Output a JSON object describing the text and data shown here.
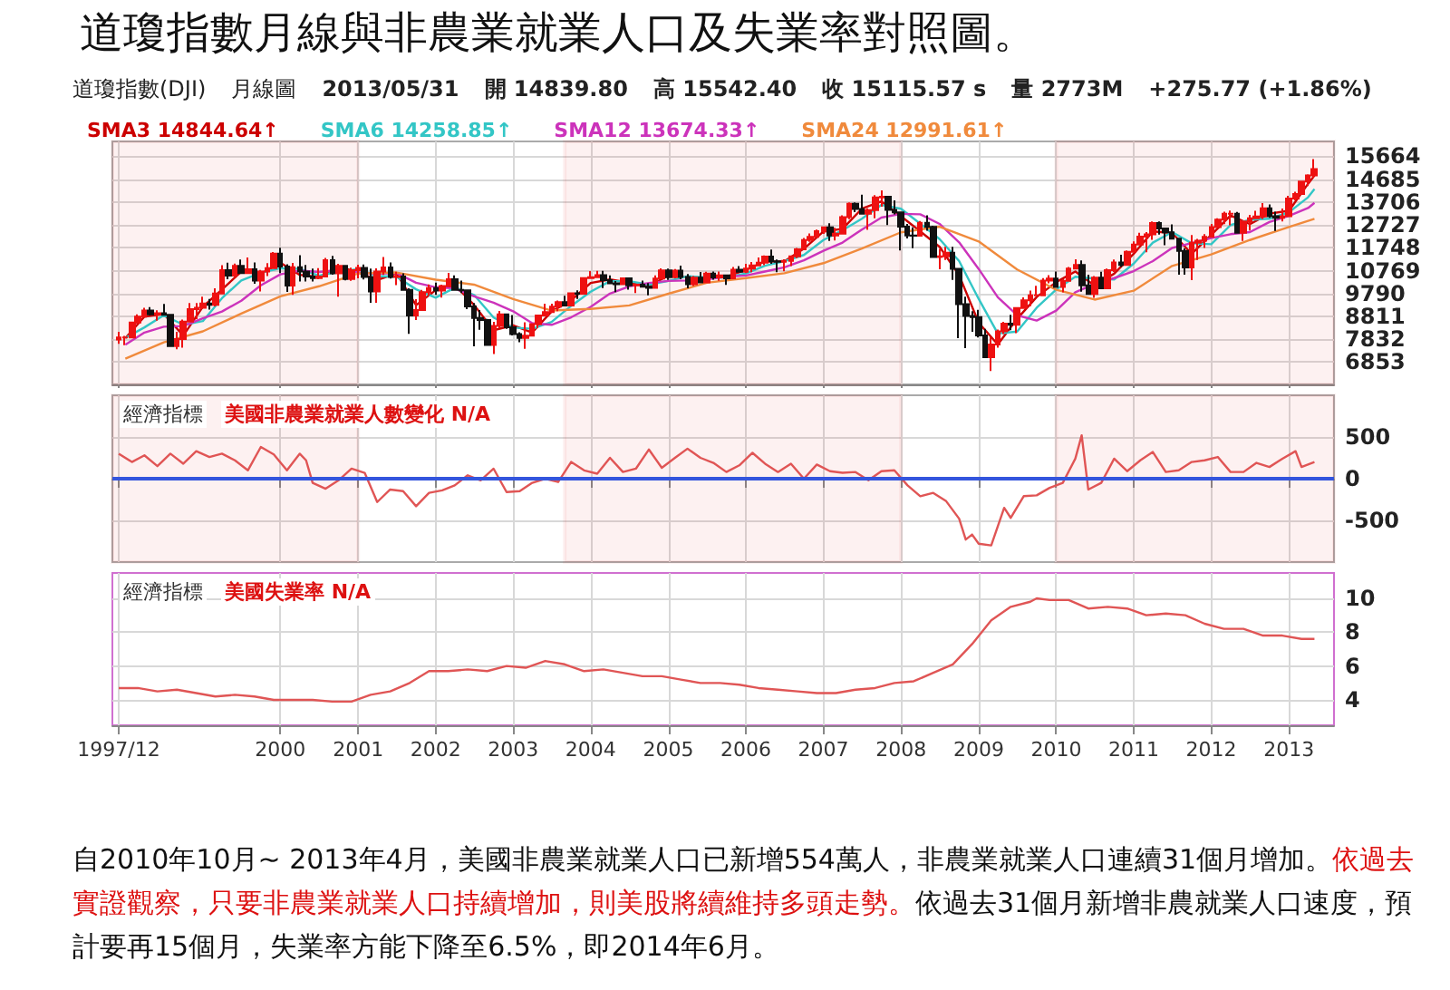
{
  "chart_data": [
    {
      "type": "candlestick",
      "title": "道瓊指數月線與非農業就業人口及失業率對照圖。",
      "annotations": [
        "道瓊指數(DJI)",
        "月線圖",
        "2013/05/31",
        "開 14839.80",
        "高 15542.40",
        "收 15115.57 s",
        "量 2773M",
        "+275.77 (+1.86%)"
      ],
      "x": [
        "1997-12",
        "1998-01",
        "1998-02",
        "1998-03",
        "1998-04",
        "1998-05",
        "1998-06",
        "1998-07",
        "1998-08",
        "1998-09",
        "1998-10",
        "1998-11",
        "1998-12",
        "1999-01",
        "1999-02",
        "1999-03",
        "1999-04",
        "1999-05",
        "1999-06",
        "1999-07",
        "1999-08",
        "1999-09",
        "1999-10",
        "1999-11",
        "1999-12",
        "2000-01",
        "2000-02",
        "2000-03",
        "2000-04",
        "2000-05",
        "2000-06",
        "2000-07",
        "2000-08",
        "2000-09",
        "2000-10",
        "2000-11",
        "2000-12",
        "2001-01",
        "2001-02",
        "2001-03",
        "2001-04",
        "2001-05",
        "2001-06",
        "2001-07",
        "2001-08",
        "2001-09",
        "2001-10",
        "2001-11",
        "2001-12",
        "2002-01",
        "2002-02",
        "2002-03",
        "2002-04",
        "2002-05",
        "2002-06",
        "2002-07",
        "2002-08",
        "2002-09",
        "2002-10",
        "2002-11",
        "2002-12",
        "2003-01",
        "2003-02",
        "2003-03",
        "2003-04",
        "2003-05",
        "2003-06",
        "2003-07",
        "2003-08",
        "2003-09",
        "2003-10",
        "2003-11",
        "2003-12",
        "2004-01",
        "2004-02",
        "2004-03",
        "2004-04",
        "2004-05",
        "2004-06",
        "2004-07",
        "2004-08",
        "2004-09",
        "2004-10",
        "2004-11",
        "2004-12",
        "2005-01",
        "2005-02",
        "2005-03",
        "2005-04",
        "2005-05",
        "2005-06",
        "2005-07",
        "2005-08",
        "2005-09",
        "2005-10",
        "2005-11",
        "2005-12",
        "2006-01",
        "2006-02",
        "2006-03",
        "2006-04",
        "2006-05",
        "2006-06",
        "2006-07",
        "2006-08",
        "2006-09",
        "2006-10",
        "2006-11",
        "2006-12",
        "2007-01",
        "2007-02",
        "2007-03",
        "2007-04",
        "2007-05",
        "2007-06",
        "2007-07",
        "2007-08",
        "2007-09",
        "2007-10",
        "2007-11",
        "2007-12",
        "2008-01",
        "2008-02",
        "2008-03",
        "2008-04",
        "2008-05",
        "2008-06",
        "2008-07",
        "2008-08",
        "2008-09",
        "2008-10",
        "2008-11",
        "2008-12",
        "2009-01",
        "2009-02",
        "2009-03",
        "2009-04",
        "2009-05",
        "2009-06",
        "2009-07",
        "2009-08",
        "2009-09",
        "2009-10",
        "2009-11",
        "2009-12",
        "2010-01",
        "2010-02",
        "2010-03",
        "2010-04",
        "2010-05",
        "2010-06",
        "2010-07",
        "2010-08",
        "2010-09",
        "2010-10",
        "2010-11",
        "2010-12",
        "2011-01",
        "2011-02",
        "2011-03",
        "2011-04",
        "2011-05",
        "2011-06",
        "2011-07",
        "2011-08",
        "2011-09",
        "2011-10",
        "2011-11",
        "2011-12",
        "2012-01",
        "2012-02",
        "2012-03",
        "2012-04",
        "2012-05",
        "2012-06",
        "2012-07",
        "2012-08",
        "2012-09",
        "2012-10",
        "2012-11",
        "2012-12",
        "2013-01",
        "2013-02",
        "2013-03",
        "2013-04",
        "2013-05"
      ],
      "ohlc": [
        [
          7820,
          8150,
          7640,
          7910
        ],
        [
          7910,
          7980,
          7580,
          7910
        ],
        [
          7910,
          8580,
          7900,
          8550
        ],
        [
          8550,
          8900,
          8500,
          8800
        ],
        [
          8800,
          9180,
          8770,
          9060
        ],
        [
          9060,
          9210,
          8850,
          8900
        ],
        [
          8900,
          9070,
          8630,
          8950
        ],
        [
          8950,
          9340,
          8850,
          8880
        ],
        [
          8880,
          8920,
          7540,
          7540
        ],
        [
          7540,
          8150,
          7400,
          7840
        ],
        [
          7840,
          8670,
          7470,
          8590
        ],
        [
          8590,
          9380,
          8590,
          9120
        ],
        [
          9120,
          9380,
          8690,
          9180
        ],
        [
          9180,
          9650,
          9120,
          9360
        ],
        [
          9360,
          9560,
          9100,
          9310
        ],
        [
          9310,
          10010,
          9240,
          9790
        ],
        [
          9790,
          11000,
          9770,
          10790
        ],
        [
          10790,
          11110,
          10400,
          10560
        ],
        [
          10560,
          11070,
          10460,
          10970
        ],
        [
          10970,
          11250,
          10650,
          10660
        ],
        [
          10660,
          11330,
          10620,
          10830
        ],
        [
          10830,
          11120,
          10210,
          10340
        ],
        [
          10340,
          10800,
          9880,
          10730
        ],
        [
          10730,
          11090,
          10540,
          10880
        ],
        [
          10880,
          11570,
          10880,
          11500
        ],
        [
          11500,
          11750,
          10660,
          10940
        ],
        [
          10940,
          11040,
          9860,
          10130
        ],
        [
          10130,
          11100,
          9730,
          10920
        ],
        [
          10920,
          11430,
          10300,
          10730
        ],
        [
          10730,
          11010,
          10300,
          10520
        ],
        [
          10520,
          10860,
          10300,
          10450
        ],
        [
          10450,
          10880,
          10400,
          10520
        ],
        [
          10520,
          11310,
          10520,
          11220
        ],
        [
          11220,
          11400,
          10600,
          10650
        ],
        [
          10650,
          11060,
          9650,
          10970
        ],
        [
          10970,
          11000,
          10350,
          10410
        ],
        [
          10410,
          10900,
          10330,
          10790
        ],
        [
          10790,
          11020,
          10440,
          10890
        ],
        [
          10890,
          11030,
          10390,
          10500
        ],
        [
          10500,
          10860,
          9390,
          9880
        ],
        [
          9880,
          10870,
          9390,
          10730
        ],
        [
          10730,
          11350,
          10590,
          10910
        ],
        [
          10910,
          11120,
          10430,
          10500
        ],
        [
          10500,
          10720,
          10150,
          10520
        ],
        [
          10520,
          10650,
          9920,
          9950
        ],
        [
          9950,
          10010,
          8060,
          8850
        ],
        [
          8850,
          9550,
          8660,
          9080
        ],
        [
          9080,
          9950,
          9060,
          9850
        ],
        [
          9850,
          10180,
          9700,
          10020
        ],
        [
          10020,
          10260,
          9730,
          9920
        ],
        [
          9920,
          10170,
          9620,
          10110
        ],
        [
          10110,
          10670,
          10100,
          10400
        ],
        [
          10400,
          10570,
          9920,
          9950
        ],
        [
          9950,
          10340,
          9810,
          9930
        ],
        [
          9930,
          9940,
          9120,
          9240
        ],
        [
          9240,
          9380,
          7530,
          8740
        ],
        [
          8740,
          9080,
          8240,
          8660
        ],
        [
          8660,
          8700,
          7590,
          7590
        ],
        [
          7590,
          8580,
          7200,
          8400
        ],
        [
          8400,
          9040,
          8310,
          8900
        ],
        [
          8900,
          8910,
          8280,
          8340
        ],
        [
          8340,
          8870,
          8000,
          8050
        ],
        [
          8050,
          8130,
          7700,
          7890
        ],
        [
          7890,
          8560,
          7420,
          7990
        ],
        [
          7990,
          8510,
          7990,
          8480
        ],
        [
          8480,
          8870,
          8320,
          8850
        ],
        [
          8850,
          9350,
          8850,
          8990
        ],
        [
          8990,
          9350,
          8960,
          9230
        ],
        [
          9230,
          9490,
          9030,
          9420
        ],
        [
          9420,
          9690,
          9270,
          9280
        ],
        [
          9280,
          9840,
          9280,
          9800
        ],
        [
          9800,
          9930,
          9560,
          9780
        ],
        [
          9780,
          10460,
          9780,
          10450
        ],
        [
          10450,
          10750,
          10420,
          10490
        ],
        [
          10490,
          10760,
          10470,
          10580
        ],
        [
          10580,
          10760,
          10020,
          10360
        ],
        [
          10360,
          10570,
          10220,
          10230
        ],
        [
          10230,
          10320,
          9850,
          10190
        ],
        [
          10190,
          10480,
          10150,
          10440
        ],
        [
          10440,
          10440,
          9960,
          10140
        ],
        [
          10140,
          10210,
          9810,
          10170
        ],
        [
          10170,
          10340,
          10050,
          10080
        ],
        [
          10080,
          10240,
          9710,
          10030
        ],
        [
          10030,
          10570,
          10030,
          10430
        ],
        [
          10430,
          10870,
          10430,
          10780
        ],
        [
          10780,
          10860,
          10370,
          10490
        ],
        [
          10490,
          10840,
          10440,
          10770
        ],
        [
          10770,
          10980,
          10400,
          10500
        ],
        [
          10500,
          10620,
          10010,
          10190
        ],
        [
          10190,
          10540,
          10110,
          10470
        ],
        [
          10470,
          10710,
          10250,
          10270
        ],
        [
          10270,
          10720,
          10250,
          10640
        ],
        [
          10640,
          10730,
          10380,
          10480
        ],
        [
          10480,
          10730,
          10330,
          10570
        ],
        [
          10570,
          10600,
          10160,
          10440
        ],
        [
          10440,
          10930,
          10400,
          10810
        ],
        [
          10810,
          10960,
          10710,
          10720
        ],
        [
          10720,
          11060,
          10660,
          10860
        ],
        [
          10860,
          11140,
          10700,
          10990
        ],
        [
          10990,
          11330,
          10990,
          11110
        ],
        [
          11110,
          11420,
          11000,
          11370
        ],
        [
          11370,
          11670,
          11060,
          11170
        ],
        [
          11170,
          11250,
          10700,
          11150
        ],
        [
          11150,
          11260,
          10740,
          11190
        ],
        [
          11190,
          11420,
          10960,
          11380
        ],
        [
          11380,
          11740,
          11300,
          11680
        ],
        [
          11680,
          12170,
          11650,
          12080
        ],
        [
          12080,
          12360,
          12000,
          12220
        ],
        [
          12220,
          12530,
          12170,
          12460
        ],
        [
          12460,
          12660,
          12340,
          12620
        ],
        [
          12620,
          12800,
          12040,
          12270
        ],
        [
          12270,
          12600,
          12060,
          12350
        ],
        [
          12350,
          13140,
          12350,
          13060
        ],
        [
          13060,
          13690,
          12970,
          13630
        ],
        [
          13630,
          13690,
          13270,
          13410
        ],
        [
          13410,
          14020,
          13190,
          13210
        ],
        [
          13210,
          13440,
          12520,
          13360
        ],
        [
          13360,
          14000,
          13010,
          13900
        ],
        [
          13900,
          14200,
          13510,
          13930
        ],
        [
          13930,
          13930,
          12720,
          13370
        ],
        [
          13370,
          13780,
          13180,
          13260
        ],
        [
          13260,
          13280,
          11630,
          12650
        ],
        [
          12650,
          12770,
          12150,
          12270
        ],
        [
          12270,
          12620,
          11730,
          12260
        ],
        [
          12260,
          12890,
          12250,
          12820
        ],
        [
          12820,
          13140,
          12480,
          12640
        ],
        [
          12640,
          12690,
          11350,
          11350
        ],
        [
          11350,
          11700,
          10830,
          11380
        ],
        [
          11380,
          11790,
          11230,
          11540
        ],
        [
          11540,
          11790,
          10370,
          10850
        ],
        [
          10850,
          10880,
          7880,
          9330
        ],
        [
          9330,
          9650,
          7450,
          8830
        ],
        [
          8830,
          9030,
          8150,
          8780
        ],
        [
          8780,
          9090,
          7910,
          8000
        ],
        [
          8000,
          8280,
          7060,
          7060
        ],
        [
          7060,
          7930,
          6470,
          7610
        ],
        [
          7610,
          8250,
          7470,
          8170
        ],
        [
          8170,
          8580,
          8050,
          8500
        ],
        [
          8500,
          8880,
          8220,
          8450
        ],
        [
          8450,
          9170,
          8090,
          9170
        ],
        [
          9170,
          9630,
          9140,
          9500
        ],
        [
          9500,
          9920,
          9250,
          9710
        ],
        [
          9710,
          10120,
          9680,
          9710
        ],
        [
          9710,
          10450,
          9670,
          10340
        ],
        [
          10340,
          10580,
          10230,
          10430
        ],
        [
          10430,
          10730,
          10060,
          10070
        ],
        [
          10070,
          10400,
          9840,
          10330
        ],
        [
          10330,
          10930,
          10320,
          10860
        ],
        [
          10860,
          11260,
          10860,
          11010
        ],
        [
          11010,
          11210,
          9870,
          10140
        ],
        [
          10140,
          10600,
          9760,
          9770
        ],
        [
          9770,
          10540,
          9610,
          10470
        ],
        [
          10470,
          10720,
          9990,
          10010
        ],
        [
          10010,
          10860,
          10010,
          10790
        ],
        [
          10790,
          11250,
          10710,
          11120
        ],
        [
          11120,
          11450,
          10930,
          11010
        ],
        [
          11010,
          11630,
          11010,
          11580
        ],
        [
          11580,
          12020,
          11580,
          11890
        ],
        [
          11890,
          12390,
          11890,
          12230
        ],
        [
          12230,
          12420,
          11560,
          12320
        ],
        [
          12320,
          12880,
          12090,
          12810
        ],
        [
          12810,
          12880,
          12310,
          12570
        ],
        [
          12570,
          12580,
          11860,
          12410
        ],
        [
          12410,
          12750,
          12100,
          12140
        ],
        [
          12140,
          12140,
          10600,
          11610
        ],
        [
          11610,
          11720,
          10600,
          10910
        ],
        [
          10910,
          12290,
          10360,
          11960
        ],
        [
          11960,
          12130,
          11230,
          12050
        ],
        [
          12050,
          12330,
          11740,
          12220
        ],
        [
          12220,
          12770,
          12210,
          12630
        ],
        [
          12630,
          13010,
          12620,
          12950
        ],
        [
          12950,
          13290,
          12760,
          13210
        ],
        [
          13210,
          13340,
          12710,
          13210
        ],
        [
          13210,
          13280,
          12390,
          12390
        ],
        [
          12390,
          12900,
          12040,
          12880
        ],
        [
          12880,
          13160,
          12490,
          13010
        ],
        [
          13010,
          13330,
          12990,
          13090
        ],
        [
          13090,
          13660,
          12980,
          13440
        ],
        [
          13440,
          13600,
          13030,
          13100
        ],
        [
          13100,
          13290,
          12470,
          13030
        ],
        [
          13030,
          13430,
          12880,
          13100
        ],
        [
          13100,
          13970,
          13100,
          13860
        ],
        [
          13860,
          14150,
          13780,
          14050
        ],
        [
          14050,
          14590,
          14050,
          14580
        ],
        [
          14580,
          14890,
          14390,
          14840
        ],
        [
          14840,
          15540,
          14740,
          15120
        ]
      ],
      "series": [
        {
          "type": "line",
          "name": "SMA3 14844.64↑",
          "color": "#cc0000",
          "x": [
            "1998-01",
            "1998-04",
            "1998-07",
            "1998-10",
            "1999-01",
            "1999-04",
            "1999-07",
            "1999-10",
            "2000-01",
            "2000-04",
            "2000-07",
            "2000-10",
            "2001-01",
            "2001-04",
            "2001-07",
            "2001-10",
            "2002-01",
            "2002-04",
            "2002-07",
            "2002-10",
            "2003-01",
            "2003-04",
            "2003-07",
            "2003-10",
            "2004-01",
            "2004-04",
            "2004-07",
            "2004-10",
            "2005-01",
            "2005-04",
            "2005-07",
            "2005-10",
            "2006-01",
            "2006-04",
            "2006-07",
            "2006-10",
            "2007-01",
            "2007-04",
            "2007-07",
            "2007-10",
            "2008-01",
            "2008-04",
            "2008-07",
            "2008-10",
            "2009-01",
            "2009-04",
            "2009-07",
            "2009-10",
            "2010-01",
            "2010-04",
            "2010-07",
            "2010-10",
            "2011-01",
            "2011-04",
            "2011-07",
            "2011-10",
            "2012-01",
            "2012-04",
            "2012-07",
            "2012-10",
            "2013-01",
            "2013-04",
            "2013-05"
          ],
          "values": [
            7880,
            8800,
            8910,
            7990,
            9220,
            9960,
            10730,
            10630,
            11110,
            10590,
            10500,
            10950,
            10700,
            10370,
            10650,
            9290,
            9930,
            10150,
            9300,
            8220,
            8430,
            8120,
            9020,
            9500,
            10240,
            10390,
            10250,
            10090,
            10570,
            10490,
            10460,
            10500,
            10800,
            11160,
            11170,
            11710,
            12440,
            12560,
            13420,
            13730,
            13100,
            12450,
            11790,
            10570,
            8540,
            7610,
            8710,
            9640,
            10280,
            10730,
            10130,
            10640,
            11490,
            12450,
            12380,
            11490,
            12300,
            13130,
            12760,
            13210,
            13330,
            14490,
            14840
          ]
        },
        {
          "type": "line",
          "name": "SMA6 14258.85↑",
          "color": "#33c6c6",
          "x": [
            "1998-01",
            "1998-04",
            "1998-07",
            "1998-10",
            "1999-01",
            "1999-04",
            "1999-07",
            "1999-10",
            "2000-01",
            "2000-04",
            "2000-07",
            "2000-10",
            "2001-01",
            "2001-04",
            "2001-07",
            "2001-10",
            "2002-01",
            "2002-04",
            "2002-07",
            "2002-10",
            "2003-01",
            "2003-04",
            "2003-07",
            "2003-10",
            "2004-01",
            "2004-04",
            "2004-07",
            "2004-10",
            "2005-01",
            "2005-04",
            "2005-07",
            "2005-10",
            "2006-01",
            "2006-04",
            "2006-07",
            "2006-10",
            "2007-01",
            "2007-04",
            "2007-07",
            "2007-10",
            "2008-01",
            "2008-04",
            "2008-07",
            "2008-10",
            "2009-01",
            "2009-04",
            "2009-07",
            "2009-10",
            "2010-01",
            "2010-04",
            "2010-07",
            "2010-10",
            "2011-01",
            "2011-04",
            "2011-07",
            "2011-10",
            "2012-01",
            "2012-04",
            "2012-07",
            "2012-10",
            "2013-01",
            "2013-04",
            "2013-05"
          ],
          "values": [
            7890,
            8340,
            8860,
            8450,
            8610,
            9590,
            10350,
            10680,
            10870,
            10850,
            10550,
            10730,
            10830,
            10540,
            10510,
            9970,
            9610,
            10040,
            9730,
            8760,
            8330,
            8280,
            8570,
            9260,
            9870,
            10320,
            10320,
            10170,
            10330,
            10530,
            10480,
            10480,
            10650,
            10980,
            11170,
            11440,
            12080,
            12500,
            12990,
            13580,
            13420,
            12780,
            12120,
            11180,
            9560,
            8080,
            8160,
            9180,
            9960,
            10510,
            10430,
            10390,
            11070,
            11970,
            12420,
            11940,
            11900,
            12720,
            12950,
            12990,
            13270,
            13910,
            14260
          ]
        },
        {
          "type": "line",
          "name": "SMA12 13674.33↑",
          "color": "#cc33bb",
          "x": [
            "1998-01",
            "1998-04",
            "1998-07",
            "1998-10",
            "1999-01",
            "1999-04",
            "1999-07",
            "1999-10",
            "2000-01",
            "2000-04",
            "2000-07",
            "2000-10",
            "2001-01",
            "2001-04",
            "2001-07",
            "2001-10",
            "2002-01",
            "2002-04",
            "2002-07",
            "2002-10",
            "2003-01",
            "2003-04",
            "2003-07",
            "2003-10",
            "2004-01",
            "2004-04",
            "2004-07",
            "2004-10",
            "2005-01",
            "2005-04",
            "2005-07",
            "2005-10",
            "2006-01",
            "2006-04",
            "2006-07",
            "2006-10",
            "2007-01",
            "2007-04",
            "2007-07",
            "2007-10",
            "2008-01",
            "2008-04",
            "2008-07",
            "2008-10",
            "2009-01",
            "2009-04",
            "2009-07",
            "2009-10",
            "2010-01",
            "2010-04",
            "2010-07",
            "2010-10",
            "2011-01",
            "2011-04",
            "2011-07",
            "2011-10",
            "2012-01",
            "2012-04",
            "2012-07",
            "2012-10",
            "2013-01",
            "2013-04",
            "2013-05"
          ],
          "values": [
            7600,
            8120,
            8370,
            8400,
            8730,
            9020,
            9480,
            10140,
            10610,
            10770,
            10710,
            10790,
            10690,
            10630,
            10670,
            10250,
            10060,
            10010,
            9670,
            9400,
            9030,
            8520,
            8450,
            8770,
            9220,
            9790,
            10100,
            10240,
            10330,
            10350,
            10400,
            10510,
            10560,
            10730,
            10910,
            11210,
            11620,
            11970,
            12530,
            13040,
            13200,
            13180,
            12770,
            11980,
            10840,
            9630,
            8860,
            8630,
            9060,
            9840,
            10200,
            10450,
            10750,
            11180,
            11740,
            11950,
            12160,
            12330,
            12420,
            12850,
            13110,
            13450,
            13670
          ]
        },
        {
          "type": "line",
          "name": "SMA24 12991.61↑",
          "color": "#f08a3c",
          "x": [
            "1998-01",
            "1998-07",
            "1999-01",
            "1999-07",
            "2000-01",
            "2000-07",
            "2001-01",
            "2001-07",
            "2002-01",
            "2002-07",
            "2003-01",
            "2003-07",
            "2004-01",
            "2004-07",
            "2005-01",
            "2005-07",
            "2006-01",
            "2006-07",
            "2007-01",
            "2007-07",
            "2008-01",
            "2008-07",
            "2009-01",
            "2009-07",
            "2010-01",
            "2010-07",
            "2011-01",
            "2011-07",
            "2012-01",
            "2012-07",
            "2013-01",
            "2013-05"
          ],
          "values": [
            7000,
            7700,
            8170,
            8930,
            9670,
            10100,
            10650,
            10690,
            10380,
            10170,
            9550,
            9060,
            9130,
            9280,
            9780,
            10250,
            10450,
            10660,
            11090,
            11720,
            12410,
            12650,
            12020,
            10820,
            9950,
            9530,
            9910,
            10970,
            11460,
            12080,
            12640,
            12990
          ]
        }
      ],
      "xlim": [
        "1997-11",
        "2013-08"
      ],
      "xticks": [
        {
          "value": "1997-12",
          "label": null
        },
        "2000",
        "2001",
        "2002",
        "2003",
        "2004",
        "2005",
        "2006",
        "2007",
        "2008",
        "2009",
        "2010",
        "2011",
        "2012",
        "2013"
      ],
      "ylim": [
        5900,
        16300
      ],
      "yticks": [
        6853,
        7832,
        8811,
        9790,
        10769,
        11748,
        12727,
        13706,
        14685,
        15664
      ],
      "bands": [
        {
          "axis": "x",
          "from": "1997-11",
          "to": "2001-01",
          "color": "#dd1111"
        },
        {
          "axis": "x",
          "from": "2003-09",
          "to": "2008-01",
          "color": "#dd1111"
        },
        {
          "axis": "x",
          "from": "2010-01",
          "to": "2013-08",
          "color": "#dd1111"
        }
      ],
      "grid": true,
      "legend": "top left",
      "tick_labels": "y",
      "marker": "none"
    },
    {
      "type": "line",
      "title": "經濟指標",
      "subtitle": "美國非農業就業人數變化 N/A",
      "color": "#e05555",
      "x": [
        "1997-12",
        "1998-02",
        "1998-04",
        "1998-06",
        "1998-08",
        "1998-10",
        "1998-12",
        "1999-02",
        "1999-04",
        "1999-06",
        "1999-08",
        "1999-10",
        "1999-12",
        "2000-02",
        "2000-04",
        "2000-05",
        "2000-06",
        "2000-08",
        "2000-10",
        "2000-12",
        "2001-02",
        "2001-04",
        "2001-06",
        "2001-08",
        "2001-10",
        "2001-12",
        "2002-02",
        "2002-04",
        "2002-06",
        "2002-08",
        "2002-10",
        "2002-12",
        "2003-02",
        "2003-04",
        "2003-06",
        "2003-08",
        "2003-10",
        "2003-12",
        "2004-02",
        "2004-04",
        "2004-06",
        "2004-08",
        "2004-10",
        "2004-12",
        "2005-02",
        "2005-04",
        "2005-06",
        "2005-08",
        "2005-10",
        "2005-12",
        "2006-02",
        "2006-04",
        "2006-06",
        "2006-08",
        "2006-10",
        "2006-12",
        "2007-02",
        "2007-04",
        "2007-06",
        "2007-08",
        "2007-10",
        "2007-12",
        "2008-02",
        "2008-04",
        "2008-06",
        "2008-08",
        "2008-10",
        "2008-11",
        "2008-12",
        "2009-01",
        "2009-03",
        "2009-05",
        "2009-06",
        "2009-08",
        "2009-10",
        "2009-12",
        "2010-02",
        "2010-04",
        "2010-05",
        "2010-06",
        "2010-08",
        "2010-10",
        "2010-12",
        "2011-02",
        "2011-04",
        "2011-06",
        "2011-08",
        "2011-10",
        "2011-12",
        "2012-02",
        "2012-04",
        "2012-06",
        "2012-08",
        "2012-10",
        "2012-12",
        "2013-02",
        "2013-03",
        "2013-05"
      ],
      "values": [
        300,
        200,
        280,
        150,
        300,
        180,
        330,
        260,
        300,
        220,
        100,
        380,
        290,
        100,
        300,
        220,
        -50,
        -120,
        -20,
        120,
        70,
        -280,
        -130,
        -150,
        -330,
        -170,
        -140,
        -80,
        40,
        -20,
        120,
        -160,
        -150,
        -50,
        0,
        -40,
        200,
        100,
        60,
        250,
        80,
        120,
        350,
        130,
        250,
        360,
        250,
        190,
        80,
        160,
        310,
        180,
        80,
        180,
        0,
        170,
        90,
        70,
        80,
        -20,
        90,
        100,
        -80,
        -210,
        -170,
        -270,
        -480,
        -730,
        -670,
        -780,
        -800,
        -350,
        -470,
        -210,
        -200,
        -110,
        -50,
        240,
        520,
        -130,
        -50,
        240,
        90,
        220,
        320,
        80,
        100,
        200,
        220,
        260,
        80,
        80,
        190,
        140,
        240,
        330,
        140,
        200
      ],
      "xlim": [
        "1997-11",
        "2013-08"
      ],
      "xticks": [
        {
          "value": "1997-12",
          "label": null
        },
        "2000",
        "2001",
        "2002",
        "2003",
        "2004",
        "2005",
        "2006",
        "2007",
        "2008",
        "2009",
        "2010",
        "2011",
        "2012",
        "2013"
      ],
      "ylim": [
        -1000,
        1000
      ],
      "yticks": [
        -500,
        0,
        500
      ],
      "ref_lines": [
        {
          "axis": "y",
          "value": 0,
          "color": "#3355dd"
        }
      ],
      "bands": [
        {
          "axis": "x",
          "from": "1997-11",
          "to": "2001-01",
          "color": "#dd1111"
        },
        {
          "axis": "x",
          "from": "2003-09",
          "to": "2008-01",
          "color": "#dd1111"
        },
        {
          "axis": "x",
          "from": "2010-01",
          "to": "2013-08",
          "color": "#dd1111"
        }
      ],
      "grid": true,
      "tick_labels": "y",
      "marker": "none"
    },
    {
      "type": "line",
      "title": "經濟指標",
      "subtitle": "美國失業率 N/A",
      "color": "#e05555",
      "x": [
        "1997-12",
        "1998-03",
        "1998-06",
        "1998-09",
        "1998-12",
        "1999-03",
        "1999-06",
        "1999-09",
        "1999-12",
        "2000-03",
        "2000-06",
        "2000-09",
        "2000-12",
        "2001-03",
        "2001-06",
        "2001-09",
        "2001-12",
        "2002-03",
        "2002-06",
        "2002-09",
        "2002-12",
        "2003-03",
        "2003-06",
        "2003-09",
        "2003-12",
        "2004-03",
        "2004-06",
        "2004-09",
        "2004-12",
        "2005-03",
        "2005-06",
        "2005-09",
        "2005-12",
        "2006-03",
        "2006-06",
        "2006-09",
        "2006-12",
        "2007-03",
        "2007-06",
        "2007-09",
        "2007-12",
        "2008-03",
        "2008-06",
        "2008-09",
        "2008-12",
        "2009-03",
        "2009-06",
        "2009-09",
        "2009-10",
        "2009-12",
        "2010-03",
        "2010-06",
        "2010-09",
        "2010-12",
        "2011-03",
        "2011-06",
        "2011-09",
        "2011-12",
        "2012-03",
        "2012-06",
        "2012-09",
        "2012-12",
        "2013-03",
        "2013-05"
      ],
      "values": [
        4.7,
        4.7,
        4.5,
        4.6,
        4.4,
        4.2,
        4.3,
        4.2,
        4.0,
        4.0,
        4.0,
        3.9,
        3.9,
        4.3,
        4.5,
        5.0,
        5.7,
        5.7,
        5.8,
        5.7,
        6.0,
        5.9,
        6.3,
        6.1,
        5.7,
        5.8,
        5.6,
        5.4,
        5.4,
        5.2,
        5.0,
        5.0,
        4.9,
        4.7,
        4.6,
        4.5,
        4.4,
        4.4,
        4.6,
        4.7,
        5.0,
        5.1,
        5.6,
        6.1,
        7.3,
        8.7,
        9.5,
        9.8,
        10.0,
        9.9,
        9.9,
        9.4,
        9.5,
        9.4,
        9.0,
        9.1,
        9.0,
        8.5,
        8.2,
        8.2,
        7.8,
        7.8,
        7.6,
        7.6
      ],
      "xlim": [
        "1997-11",
        "2013-08"
      ],
      "xticks": [
        {
          "value": "1997-12",
          "label": "1997/12"
        },
        "2000",
        "2001",
        "2002",
        "2003",
        "2004",
        "2005",
        "2006",
        "2007",
        "2008",
        "2009",
        "2010",
        "2011",
        "2012",
        "2013"
      ],
      "ylim": [
        2.5,
        11.5
      ],
      "yticks": [
        4,
        6,
        8,
        10
      ],
      "annotations": [
        "自2010年10月~ 2013年4月，美國非農業就業人口已新增554萬人，非農業就業人口連續31個月增加。",
        "依過去實證觀察，只要非農業就業人口持續增加，則美股將續維持多頭走勢。",
        "依過去31個月新增非農就業人口速度，預計要再15個月，失業率方能下降至6.5%，即2014年6月。"
      ],
      "grid": true,
      "marker": "none"
    }
  ]
}
